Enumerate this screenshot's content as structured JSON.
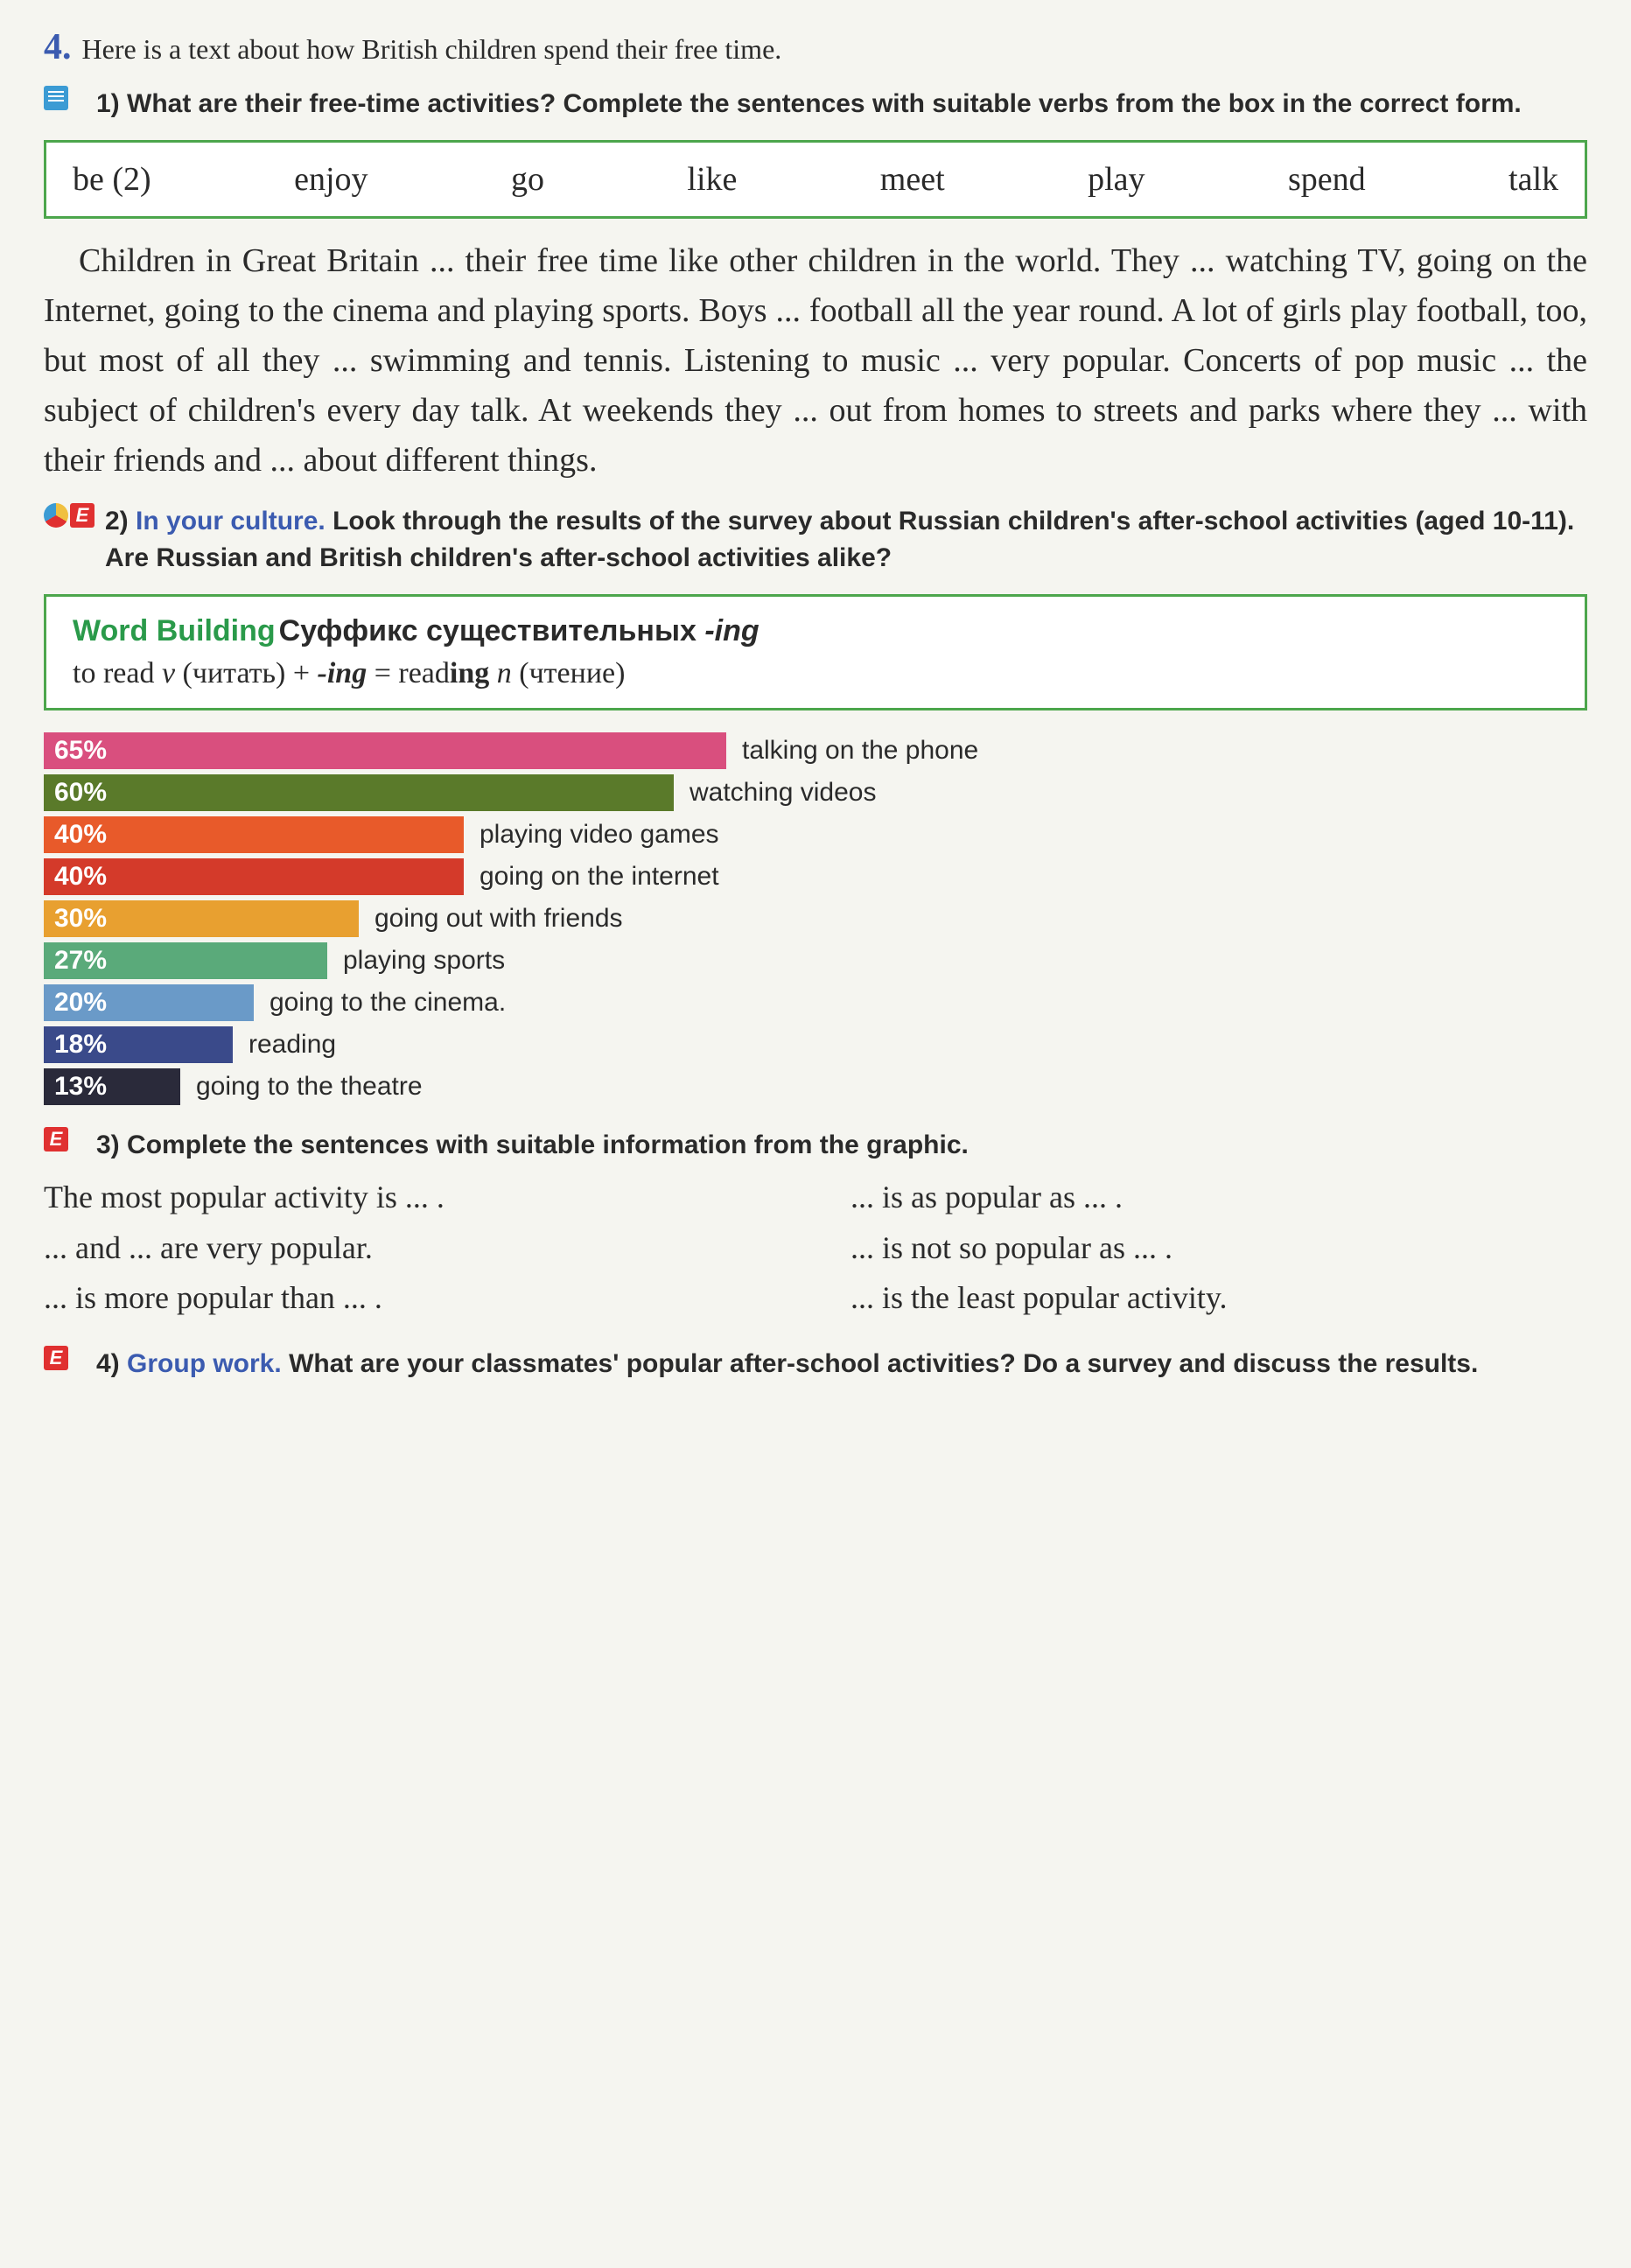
{
  "exercise_number": "4.",
  "intro": "Here is a text about how British children spend their free time.",
  "part1": {
    "number": "1)",
    "prompt": "What are their free-time activities? Complete the sentences with suitable verbs from the box in the correct form."
  },
  "wordbox": {
    "border_color": "#4ca64c",
    "words": [
      "be (2)",
      "enjoy",
      "go",
      "like",
      "meet",
      "play",
      "spend",
      "talk"
    ]
  },
  "gap_text": "Children in Great Britain ... their free time like other children in the world. They ... watching TV, going on the Internet, going to the cinema and playing sports. Boys ... football all the year round. A lot of girls play football, too, but most of all they ... swimming and tennis. Listening to music ... very popular. Concerts of pop music ... the subject of children's every day talk. At weekends they ... out from homes to streets and parks where they ... with their friends and ... about different things.",
  "part2": {
    "number": "2)",
    "culture_label": "In your culture.",
    "prompt": "Look through the results of the survey about Russian children's after-school activities (aged 10-11). Are Russian and British children's after-school activities alike?"
  },
  "wordbuilding": {
    "title": "Word Building",
    "subtitle": "Суффикс существительных -ing",
    "line": "to read v (читать) + -ing = reading n (чтение)"
  },
  "chart": {
    "max_percent": 100,
    "bar_base_width": 12,
    "font_size": 30,
    "bars": [
      {
        "percent": 65,
        "label": "talking on the phone",
        "color": "#d94f7e"
      },
      {
        "percent": 60,
        "label": "watching videos",
        "color": "#5a7a2a"
      },
      {
        "percent": 40,
        "label": "playing video games",
        "color": "#e85a2a"
      },
      {
        "percent": 40,
        "label": "going on the internet",
        "color": "#d43a2a"
      },
      {
        "percent": 30,
        "label": "going out with friends",
        "color": "#e8a030"
      },
      {
        "percent": 27,
        "label": "playing sports",
        "color": "#5aaa7a"
      },
      {
        "percent": 20,
        "label": "going to the cinema.",
        "color": "#6a9ac8"
      },
      {
        "percent": 18,
        "label": "reading",
        "color": "#3a4a8a"
      },
      {
        "percent": 13,
        "label": "going to the theatre",
        "color": "#2a2a3a"
      }
    ]
  },
  "part3": {
    "number": "3)",
    "prompt": "Complete the sentences with suitable information from the graphic.",
    "left_lines": [
      "The most popular activity is ... .",
      "... and ... are very popular.",
      "... is more popular than ... ."
    ],
    "right_lines": [
      "... is as popular as ... .",
      "... is not so popular as ... .",
      "... is the least popular activity."
    ]
  },
  "part4": {
    "number": "4)",
    "gw_label": "Group work.",
    "prompt": "What are your classmates' popular after-school activities? Do a survey and discuss the results."
  }
}
